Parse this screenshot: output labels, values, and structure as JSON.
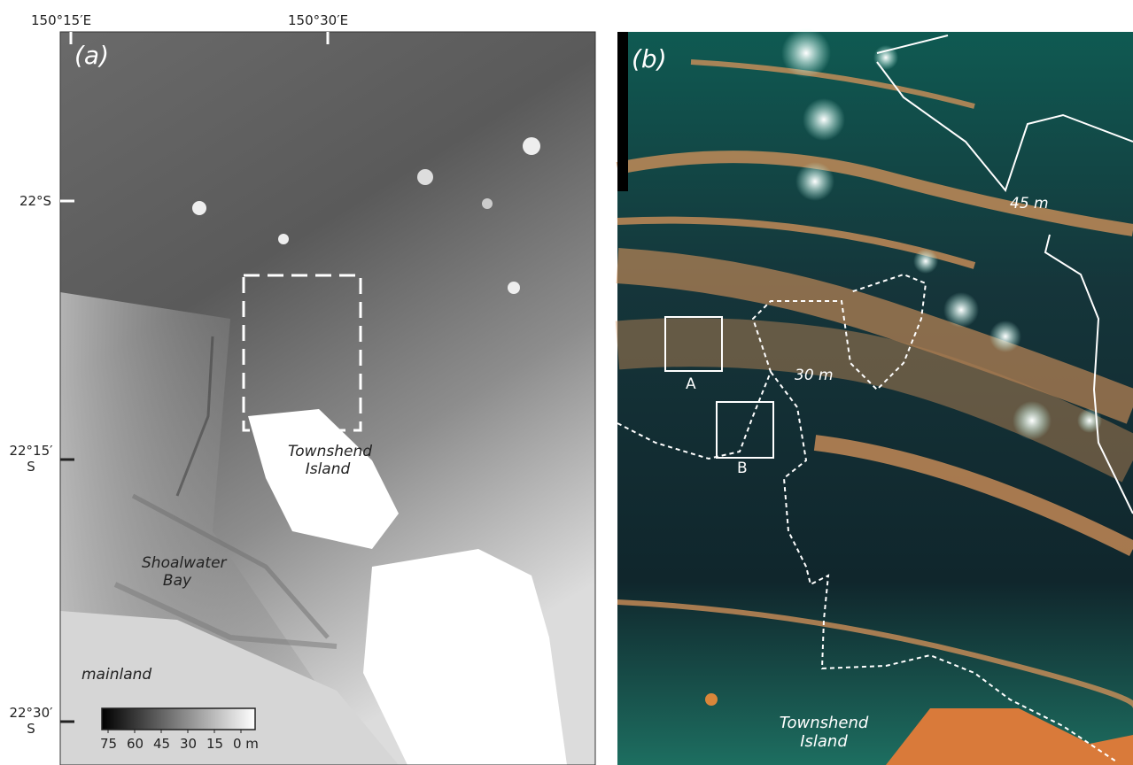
{
  "panel_a": {
    "label": "(a)",
    "lon_labels": [
      "150°15′E",
      "150°30′E"
    ],
    "lat_labels": [
      "22°S",
      "22°15′ S",
      "22°30′ S"
    ],
    "places": [
      "Townshend Island",
      "Shoalwater Bay",
      "mainland"
    ],
    "colorbar": {
      "lim": [
        75,
        0
      ],
      "ticks": [
        75,
        60,
        45,
        30,
        15,
        {
          "value": 0,
          "label": "0 m"
        }
      ]
    }
  },
  "panel_b": {
    "label": "(b)",
    "contours": [
      "45 m",
      "30 m"
    ],
    "boxes": [
      "A",
      "B"
    ],
    "place": "Townshend Island"
  }
}
